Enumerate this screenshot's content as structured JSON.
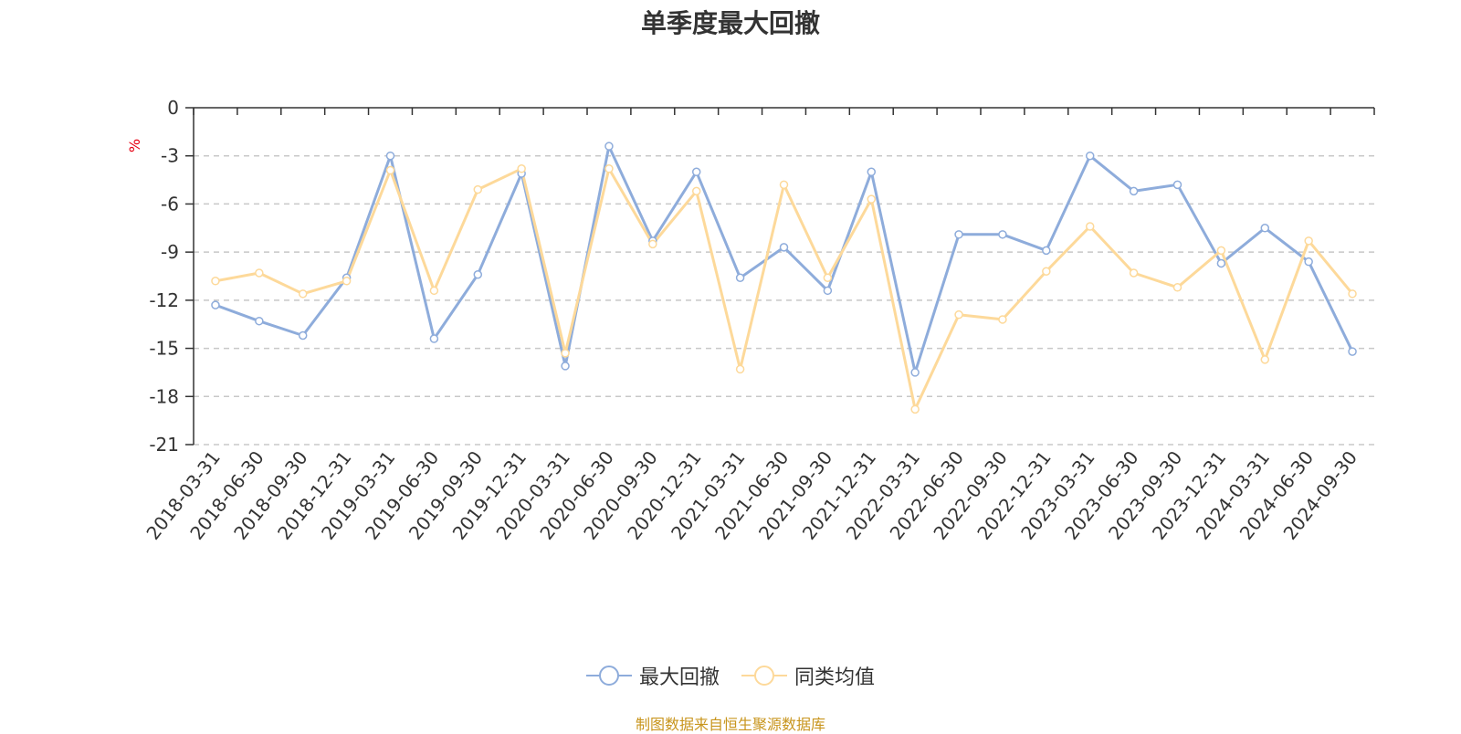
{
  "title": "单季度最大回撤",
  "y_unit": "%",
  "source_note": "制图数据来自恒生聚源数据库",
  "colors": {
    "max_drawdown": "#8eacdb",
    "peer_average": "#fdd99a",
    "grid": "#c8c8c8",
    "axis": "#333333",
    "unit": "#e60012",
    "source": "#c8951d"
  },
  "legend": [
    {
      "name": "最大回撤",
      "color": "#8eacdb"
    },
    {
      "name": "同类均值",
      "color": "#fdd99a"
    }
  ],
  "chart_data": {
    "type": "line",
    "title": "单季度最大回撤",
    "ylabel": "%",
    "ylim": [
      -21,
      0
    ],
    "yticks": [
      0,
      -3,
      -6,
      -9,
      -12,
      -15,
      -18,
      -21
    ],
    "grid": true,
    "legend_position": "bottom-center",
    "categories": [
      "2018-03-31",
      "2018-06-30",
      "2018-09-30",
      "2018-12-31",
      "2019-03-31",
      "2019-06-30",
      "2019-09-30",
      "2019-12-31",
      "2020-03-31",
      "2020-06-30",
      "2020-09-30",
      "2020-12-31",
      "2021-03-31",
      "2021-06-30",
      "2021-09-30",
      "2021-12-31",
      "2022-03-31",
      "2022-06-30",
      "2022-09-30",
      "2022-12-31",
      "2023-03-31",
      "2023-06-30",
      "2023-09-30",
      "2023-12-31",
      "2024-03-31",
      "2024-06-30",
      "2024-09-30"
    ],
    "series": [
      {
        "name": "最大回撤",
        "values": [
          -12.3,
          -13.3,
          -14.2,
          -10.6,
          -3.0,
          -14.4,
          -10.4,
          -4.1,
          -16.1,
          -2.4,
          -8.3,
          -4.0,
          -10.6,
          -8.7,
          -11.4,
          -4.0,
          -16.5,
          -7.9,
          -7.9,
          -8.9,
          -3.0,
          -5.2,
          -4.8,
          -9.7,
          -7.5,
          -9.6,
          -15.2
        ]
      },
      {
        "name": "同类均值",
        "values": [
          -10.8,
          -10.3,
          -11.6,
          -10.8,
          -3.9,
          -11.4,
          -5.1,
          -3.8,
          -15.3,
          -3.8,
          -8.5,
          -5.2,
          -16.3,
          -4.8,
          -10.6,
          -5.7,
          -18.8,
          -12.9,
          -13.2,
          -10.2,
          -7.4,
          -10.3,
          -11.2,
          -8.9,
          -15.7,
          -8.3,
          -11.6
        ]
      }
    ]
  }
}
